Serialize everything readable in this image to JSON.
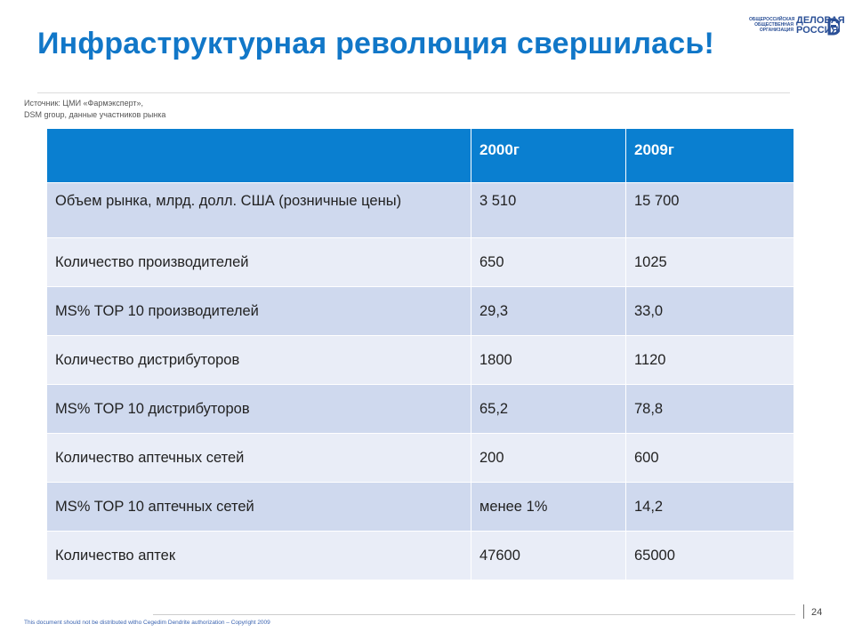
{
  "slide": {
    "title": "Инфраструктурная  революция свершилась!",
    "source_line1": "Источник: ЦМИ «Фармэксперт»,",
    "source_line2": "DSM group, данные участников рынка",
    "footer": "This document  should not be distributed  witho Cegedim Dendrite authorization  – Copyright 2009",
    "page_number": "24"
  },
  "logo": {
    "small_line1": "ОБЩЕРОССИЙСКАЯ",
    "small_line2": "ОБЩЕСТВЕННАЯ",
    "small_line3": "ОРГАНИЗАЦИЯ",
    "big_line1": "ДЕЛОВАЯ",
    "big_line2": "РОССИЯ",
    "color": "#2a4f96"
  },
  "table": {
    "header": {
      "col0": "",
      "col1": "2000г",
      "col2": "2009г"
    },
    "rows": [
      {
        "label": "Объем рынка, млрд. долл. США (розничные цены)",
        "y2000": "3 510",
        "y2009": "15 700"
      },
      {
        "label": "Количество производителей",
        "y2000": "650",
        "y2009": "1025"
      },
      {
        "label": "MS% TOP 10 производителей",
        "y2000": "29,3",
        "y2009": "33,0"
      },
      {
        "label": "Количество дистрибуторов",
        "y2000": "1800",
        "y2009": "1120"
      },
      {
        "label": "MS% TOP 10 дистрибуторов",
        "y2000": "65,2",
        "y2009": "78,8"
      },
      {
        "label": "Количество аптечных сетей",
        "y2000": "200",
        "y2009": "600"
      },
      {
        "label": "MS% TOP 10 аптечных сетей",
        "y2000": "менее 1%",
        "y2009": "14,2"
      },
      {
        "label": "Количество аптек",
        "y2000": "47600",
        "y2009": "65000"
      }
    ]
  },
  "colors": {
    "title": "#1177c8",
    "header_bg": "#0a7fd0",
    "row_dark": "#cfd9ee",
    "row_light": "#e9edf7"
  }
}
